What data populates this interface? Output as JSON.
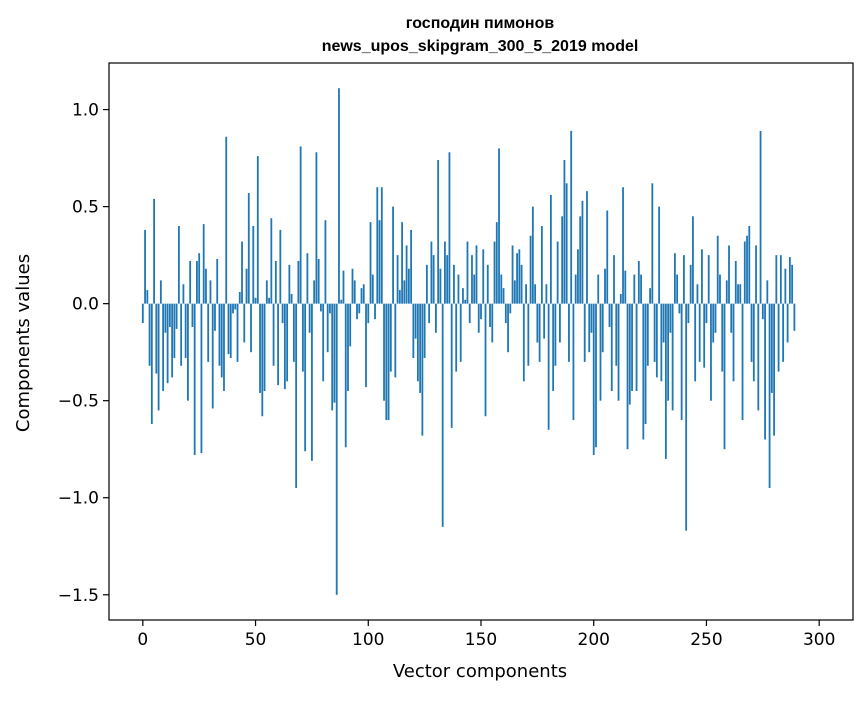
{
  "chart_data": {
    "type": "bar",
    "title_line1": "господин пимонов",
    "title_line2": "news_upos_skipgram_300_5_2019 model",
    "xlabel": "Vector components",
    "ylabel": "Components values",
    "xlim": [
      -15,
      315
    ],
    "ylim": [
      -1.63,
      1.24
    ],
    "xticks": [
      0,
      50,
      100,
      150,
      200,
      250,
      300
    ],
    "xtick_labels": [
      "0",
      "50",
      "100",
      "150",
      "200",
      "250",
      "300"
    ],
    "yticks": [
      1.0,
      0.5,
      0.0,
      -0.5,
      -1.0,
      -1.5
    ],
    "ytick_labels": [
      "1.0",
      "0.5",
      "0.0",
      "−0.5",
      "−1.0",
      "−1.5"
    ],
    "color": "#1f77b4",
    "values": [
      -0.1,
      0.38,
      0.07,
      -0.32,
      -0.62,
      0.54,
      -0.36,
      -0.55,
      0.12,
      -0.45,
      -0.15,
      -0.41,
      -0.12,
      -0.38,
      -0.28,
      -0.13,
      0.4,
      -0.32,
      0.1,
      -0.28,
      -0.5,
      0.22,
      -0.12,
      -0.78,
      0.22,
      0.26,
      -0.77,
      0.41,
      0.18,
      -0.3,
      0.12,
      -0.54,
      -0.14,
      0.23,
      -0.32,
      -0.38,
      -0.45,
      0.86,
      -0.26,
      -0.28,
      -0.05,
      -0.03,
      -0.3,
      0.06,
      0.32,
      -0.2,
      0.18,
      0.57,
      -0.25,
      0.4,
      0.03,
      0.76,
      -0.46,
      -0.58,
      -0.45,
      0.12,
      0.03,
      0.44,
      -0.32,
      0.22,
      -0.42,
      0.38,
      -0.1,
      -0.44,
      -0.4,
      0.2,
      0.05,
      -0.3,
      -0.95,
      0.22,
      0.81,
      -0.35,
      -0.76,
      0.26,
      -0.15,
      -0.81,
      0.12,
      0.78,
      0.23,
      -0.04,
      -0.4,
      0.43,
      -0.25,
      -0.05,
      -0.55,
      -0.51,
      -1.5,
      1.11,
      0.02,
      0.17,
      -0.74,
      -0.45,
      -0.22,
      0.18,
      0.12,
      -0.08,
      -0.05,
      0.08,
      0.1,
      -0.43,
      -0.1,
      0.42,
      0.15,
      -0.08,
      0.6,
      0.43,
      0.6,
      -0.5,
      -0.6,
      -0.6,
      -0.35,
      0.5,
      -0.38,
      0.25,
      0.07,
      0.42,
      0.12,
      0.3,
      0.18,
      0.38,
      -0.28,
      -0.18,
      -0.4,
      -0.46,
      -0.68,
      -0.28,
      0.2,
      -0.1,
      0.32,
      0.25,
      -0.15,
      0.74,
      0.18,
      -1.15,
      0.32,
      0.25,
      0.78,
      -0.64,
      0.2,
      -0.35,
      0.15,
      -0.3,
      0.08,
      0.02,
      0.32,
      -0.1,
      0.25,
      0.15,
      0.3,
      -0.15,
      -0.08,
      0.28,
      -0.58,
      0.2,
      -0.12,
      -0.2,
      0.32,
      0.42,
      0.8,
      0.15,
      0.08,
      -0.1,
      -0.25,
      -0.05,
      0.3,
      0.12,
      0.26,
      0.28,
      0.2,
      -0.4,
      0.1,
      -0.32,
      0.35,
      0.5,
      0.1,
      -0.2,
      -0.3,
      0.4,
      -0.18,
      0.1,
      -0.65,
      0.56,
      -0.45,
      -0.32,
      0.32,
      -0.2,
      0.45,
      0.74,
      0.62,
      -0.3,
      0.89,
      -0.6,
      0.15,
      0.28,
      0.45,
      0.53,
      -0.3,
      0.58,
      -0.25,
      -0.15,
      -0.78,
      -0.74,
      0.15,
      -0.5,
      -0.25,
      0.18,
      0.48,
      -0.12,
      -0.45,
      0.25,
      -0.32,
      -0.5,
      0.05,
      0.6,
      0.17,
      -0.75,
      -0.52,
      -0.45,
      0.15,
      -0.45,
      0.22,
      0.15,
      -0.7,
      -0.62,
      -0.32,
      0.08,
      0.62,
      -0.3,
      -0.38,
      0.5,
      -0.4,
      -0.2,
      -0.8,
      -0.5,
      -0.15,
      -0.55,
      0.26,
      0.15,
      -0.05,
      -0.6,
      0.25,
      -1.17,
      -0.1,
      0.2,
      0.45,
      -0.4,
      0.1,
      -0.3,
      0.28,
      -0.33,
      -0.1,
      0.25,
      -0.5,
      -0.2,
      -0.15,
      0.35,
      0.15,
      -0.35,
      -0.75,
      0.12,
      0.3,
      -0.15,
      -0.4,
      0.22,
      0.1,
      0.1,
      -0.6,
      0.32,
      0.35,
      0.4,
      -0.3,
      -0.4,
      0.3,
      -0.55,
      0.89,
      -0.08,
      -0.7,
      0.12,
      -0.95,
      -0.46,
      -0.68,
      0.25,
      -0.35,
      0.25,
      -0.3,
      0.18,
      -0.2,
      0.24,
      0.2,
      -0.14
    ]
  }
}
